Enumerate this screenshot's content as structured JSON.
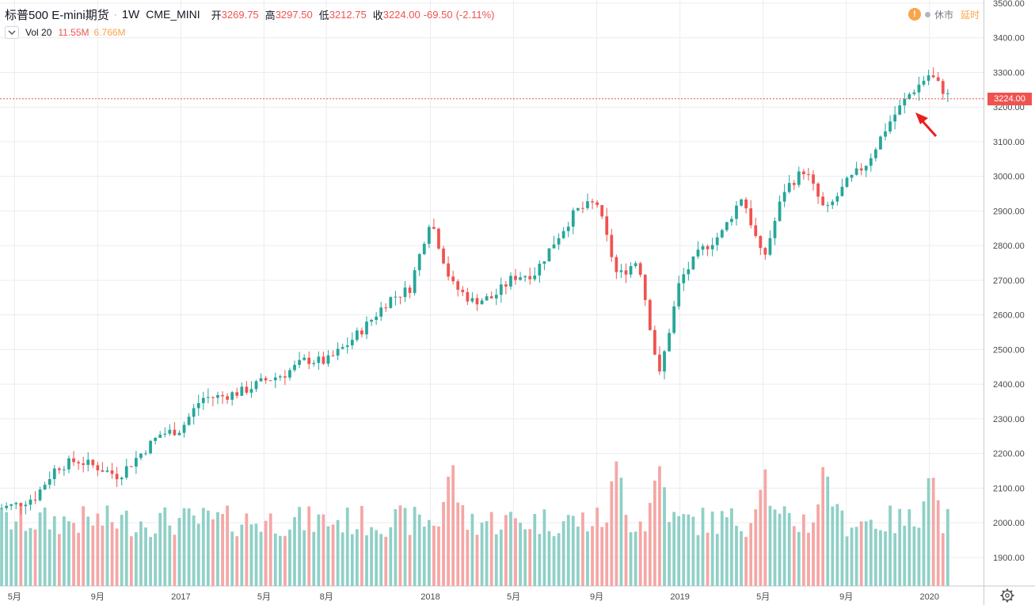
{
  "legend": {
    "symbol": "标普500 E-mini期货",
    "timeframe": "1W",
    "exchange": "CME_MINI",
    "open_label": "开",
    "open": "3269.75",
    "high_label": "高",
    "high": "3297.50",
    "low_label": "低",
    "low": "3212.75",
    "close_label": "收",
    "close": "3224.00",
    "change": "-69.50",
    "change_pct": "(-2.11%)"
  },
  "status": {
    "closed_label": "休市",
    "delay_label": "延时"
  },
  "volume_legend": {
    "name": "Vol 20",
    "value": "11.55M",
    "ma": "6.766M"
  },
  "last_price_label": "3224.00",
  "colors": {
    "up": "#26a69a",
    "down": "#ef5350",
    "vol_up": "#8fd0c7",
    "vol_down": "#f4a7a5",
    "grid": "#ececf0",
    "axis_text": "#4a4a4a",
    "price_line": "#ef5350",
    "arrow": "#e8201f"
  },
  "icons": {
    "toggle": "chevron-down-icon",
    "settings": "gear-icon",
    "warning": "exclamation-icon",
    "annotation": "red-arrow-icon"
  },
  "chart_data": {
    "type": "candlestick",
    "timeframe": "weekly",
    "x_tick_labels": [
      "5月",
      "9月",
      "2017",
      "5月",
      "8月",
      "2018",
      "5月",
      "9月",
      "2019",
      "5月",
      "9月",
      "2020"
    ],
    "y_tick_labels": [
      "1900.00",
      "2000.00",
      "2100.00",
      "2200.00",
      "2300.00",
      "2400.00",
      "2500.00",
      "2600.00",
      "2700.00",
      "2800.00",
      "2900.00",
      "3000.00",
      "3100.00",
      "3200.00",
      "3300.00",
      "3400.00",
      "3500.00"
    ],
    "ylim": [
      1870,
      3500
    ],
    "last_price": 3224.0,
    "x_range": [
      "2016-04",
      "2020-02"
    ],
    "tick_dates": [
      "2016-05",
      "2016-09",
      "2017-01",
      "2017-05",
      "2017-08",
      "2018-01",
      "2018-05",
      "2018-09",
      "2019-01",
      "2019-05",
      "2019-09",
      "2020-01"
    ],
    "series_path": [
      [
        "2016-04",
        2040
      ],
      [
        "2016-05",
        2050
      ],
      [
        "2016-06",
        2075
      ],
      [
        "2016-07",
        2160
      ],
      [
        "2016-08",
        2180
      ],
      [
        "2016-09",
        2160
      ],
      [
        "2016-10",
        2135
      ],
      [
        "2016-11",
        2195
      ],
      [
        "2016-12",
        2255
      ],
      [
        "2017-01",
        2270
      ],
      [
        "2017-02",
        2360
      ],
      [
        "2017-03",
        2365
      ],
      [
        "2017-04",
        2380
      ],
      [
        "2017-05",
        2410
      ],
      [
        "2017-06",
        2430
      ],
      [
        "2017-07",
        2470
      ],
      [
        "2017-08",
        2465
      ],
      [
        "2017-09",
        2515
      ],
      [
        "2017-10",
        2575
      ],
      [
        "2017-11",
        2645
      ],
      [
        "2017-12",
        2675
      ],
      [
        "2018-01",
        2880
      ],
      [
        "2018-02",
        2690
      ],
      [
        "2018-03",
        2640
      ],
      [
        "2018-04",
        2650
      ],
      [
        "2018-05",
        2710
      ],
      [
        "2018-06",
        2720
      ],
      [
        "2018-07",
        2815
      ],
      [
        "2018-08",
        2900
      ],
      [
        "2018-09",
        2925
      ],
      [
        "2018-10",
        2710
      ],
      [
        "2018-11",
        2760
      ],
      [
        "2018-12",
        2420
      ],
      [
        "2019-01",
        2700
      ],
      [
        "2019-02",
        2785
      ],
      [
        "2019-03",
        2835
      ],
      [
        "2019-04",
        2945
      ],
      [
        "2019-05",
        2755
      ],
      [
        "2019-06",
        2960
      ],
      [
        "2019-07",
        3020
      ],
      [
        "2019-08",
        2895
      ],
      [
        "2019-09",
        2980
      ],
      [
        "2019-10",
        3040
      ],
      [
        "2019-11",
        3150
      ],
      [
        "2019-12",
        3235
      ],
      [
        "2020-01",
        3295
      ],
      [
        "2020-02",
        3224
      ]
    ],
    "volume_scale": "relative",
    "volume_note_peaks": [
      "2018-02",
      "2018-10",
      "2018-12",
      "2019-05",
      "2019-08",
      "2020-01"
    ]
  }
}
